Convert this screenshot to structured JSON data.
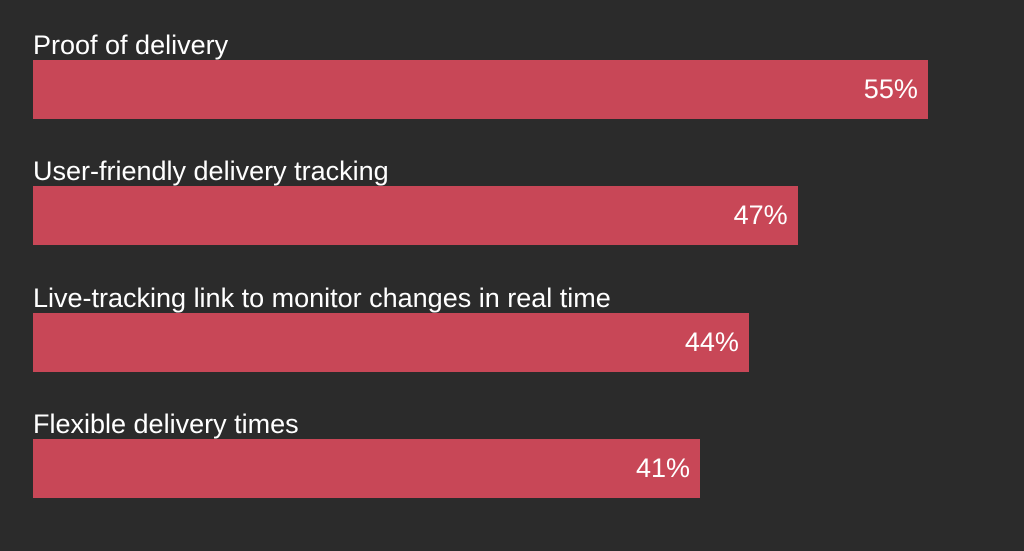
{
  "chart_data": {
    "type": "bar",
    "orientation": "horizontal",
    "categories": [
      "Proof of delivery",
      "User-friendly delivery tracking",
      "Live-tracking link to monitor changes in real time",
      "Flexible delivery times"
    ],
    "values": [
      55,
      47,
      44,
      41
    ],
    "value_labels": [
      "55%",
      "47%",
      "44%",
      "41%"
    ],
    "unit": "%",
    "xlim": [
      0,
      63
    ],
    "grid": false,
    "legend": "none"
  },
  "colors": {
    "background": "#2b2b2b",
    "bar": "#c84757",
    "text": "#ffffff"
  }
}
